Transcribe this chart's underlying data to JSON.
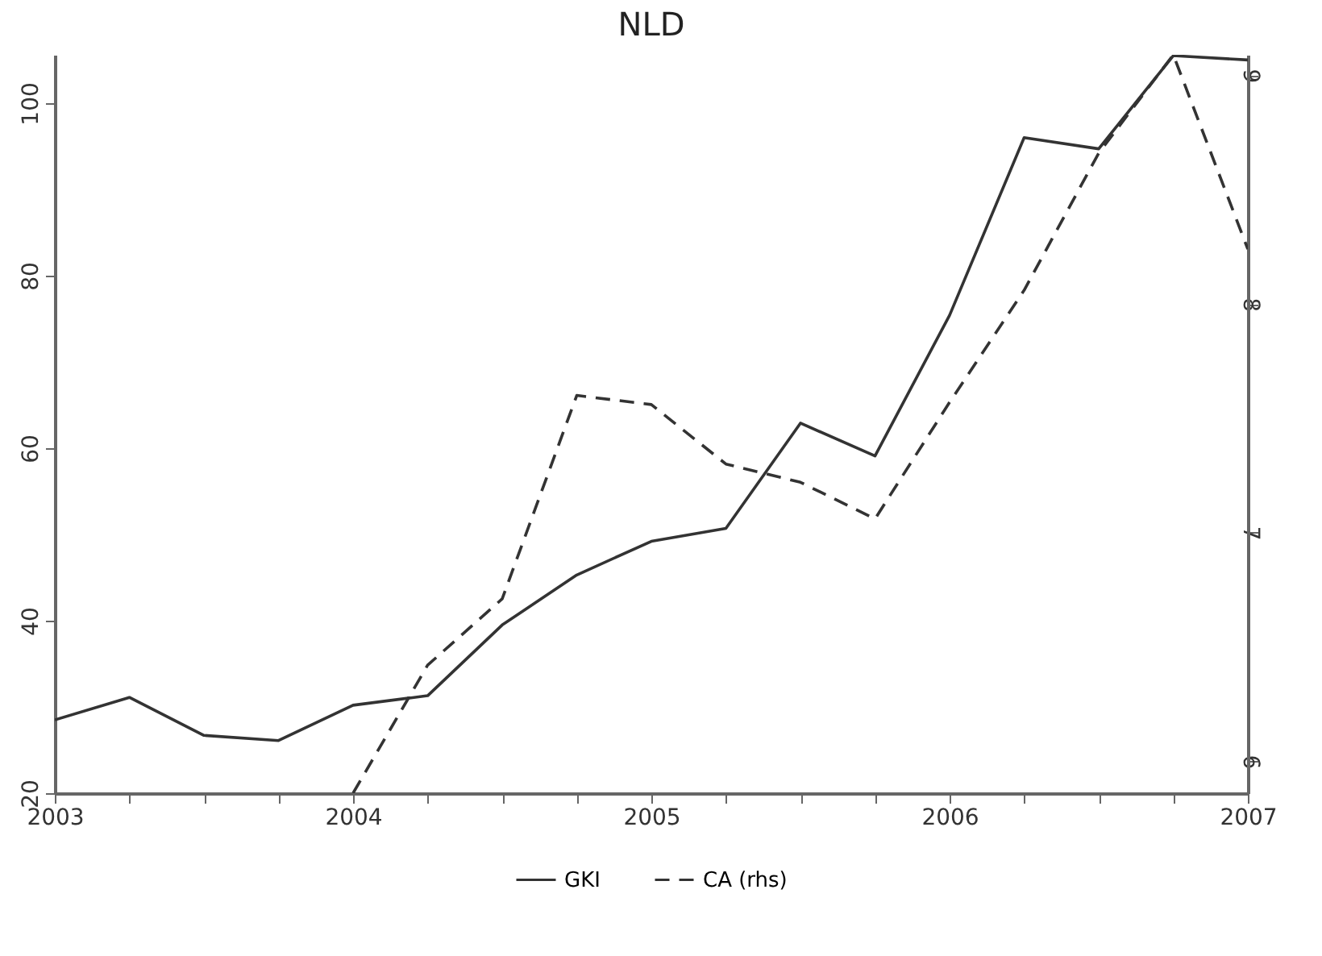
{
  "chart_data": {
    "type": "line",
    "title": "NLD",
    "x": [
      2003,
      2003.25,
      2003.5,
      2003.75,
      2004,
      2004.25,
      2004.5,
      2004.75,
      2005,
      2005.25,
      2005.5,
      2005.75,
      2006,
      2006.25,
      2006.5,
      2006.75,
      2007
    ],
    "series": [
      {
        "name": "GKI",
        "color": "#333333",
        "line_style": "solid",
        "values": [
          28.5,
          31.1,
          26.7,
          26.1,
          30.2,
          31.3,
          39.5,
          45.3,
          49.2,
          50.7,
          62.9,
          59.1,
          75.4,
          96.0,
          94.7,
          105.5,
          105.0
        ]
      },
      {
        "name": "CA (rhs)",
        "color": "#333333",
        "line_style": "dashed",
        "axis": "y2",
        "values": [
          null,
          null,
          null,
          null,
          5.86,
          6.42,
          6.71,
          7.6,
          7.56,
          7.3,
          7.22,
          7.06,
          7.57,
          8.06,
          8.66,
          9.09,
          8.24
        ]
      }
    ],
    "xlim": [
      2003,
      2007
    ],
    "xticks": [
      2003,
      {
        "value": 2003.25,
        "label": null
      },
      {
        "value": 2003.5,
        "label": null
      },
      {
        "value": 2003.75,
        "label": null
      },
      2004,
      {
        "value": 2004.25,
        "label": null
      },
      {
        "value": 2004.5,
        "label": null
      },
      {
        "value": 2004.75,
        "label": null
      },
      2005,
      {
        "value": 2005.25,
        "label": null
      },
      {
        "value": 2005.5,
        "label": null
      },
      {
        "value": 2005.75,
        "label": null
      },
      2006,
      {
        "value": 2006.25,
        "label": null
      },
      {
        "value": 2006.5,
        "label": null
      },
      {
        "value": 2006.75,
        "label": null
      },
      2007
    ],
    "ylim": [
      20,
      105.6
    ],
    "yticks": [
      20,
      40,
      60,
      80,
      100
    ],
    "y2lim": [
      5.86,
      9.09
    ],
    "y2ticks": [
      6,
      7,
      8,
      9
    ],
    "grid": false,
    "legend": "bottom"
  }
}
